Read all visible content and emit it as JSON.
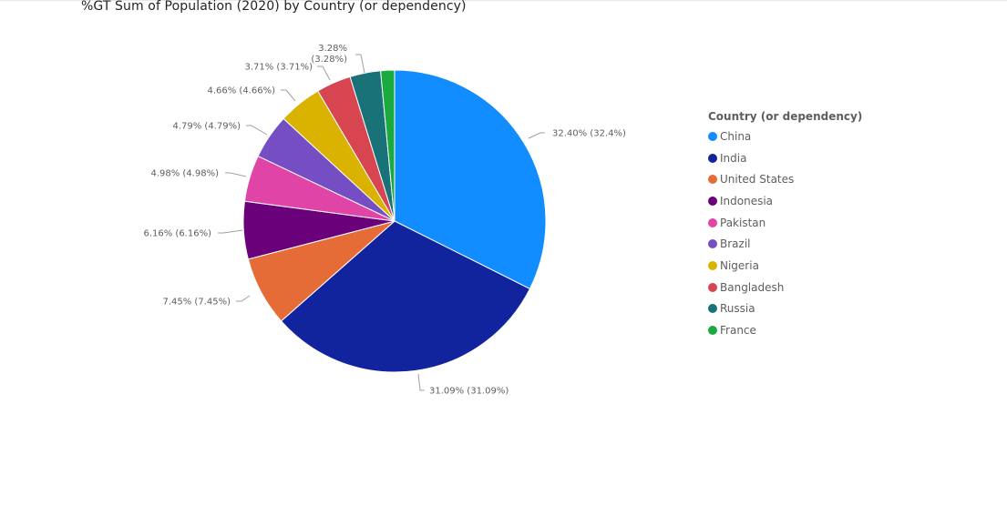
{
  "chart_data": {
    "type": "pie",
    "title": "%GT Sum of Population (2020) by Country (or dependency)",
    "legend_title": "Country (or dependency)",
    "legend_position": "right",
    "categories": [
      "China",
      "India",
      "United States",
      "Indonesia",
      "Pakistan",
      "Brazil",
      "Nigeria",
      "Bangladesh",
      "Russia",
      "France"
    ],
    "values": [
      32.4,
      31.09,
      7.45,
      6.16,
      4.98,
      4.79,
      4.66,
      3.71,
      3.28,
      1.48
    ],
    "colors": [
      "#118DFF",
      "#12239E",
      "#E66C37",
      "#6B007B",
      "#E044A7",
      "#744EC2",
      "#D9B300",
      "#D64550",
      "#197278",
      "#1AAB40"
    ],
    "data_labels": [
      "32.40% (32.4%)",
      "31.09% (31.09%)",
      "7.45% (7.45%)",
      "6.16% (6.16%)",
      "4.98% (4.98%)",
      "4.79% (4.79%)",
      "4.66% (4.66%)",
      "3.71% (3.71%)",
      "3.28% (3.28%)",
      ""
    ]
  }
}
